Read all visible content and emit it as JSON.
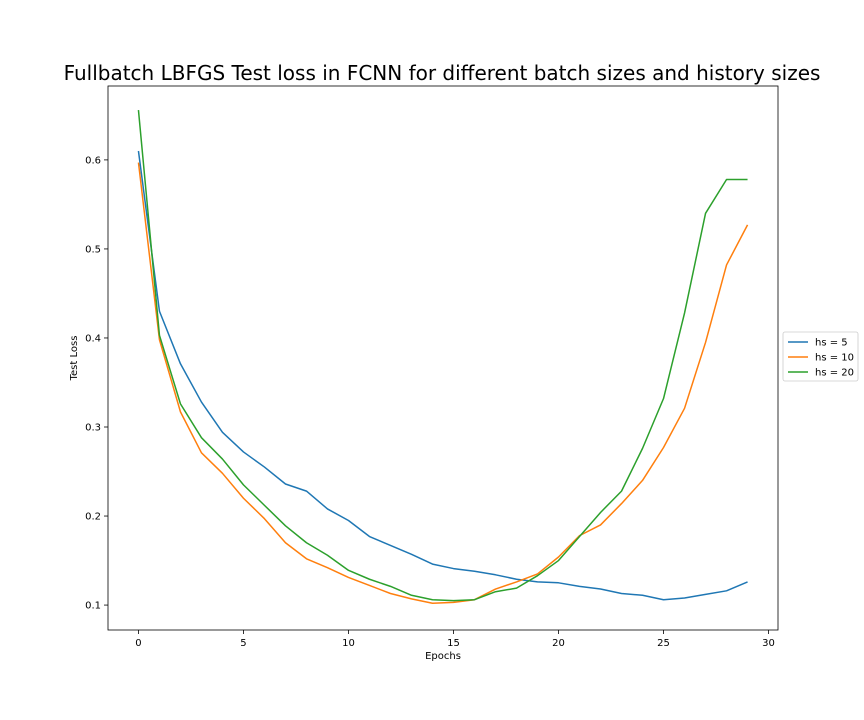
{
  "chart_data": {
    "type": "line",
    "title": "Fullbatch LBFGS Test loss in FCNN for different batch sizes and history sizes",
    "xlabel": "Epochs",
    "ylabel": "Test Loss",
    "xlim": [
      -1.45,
      30.45
    ],
    "ylim": [
      0.072,
      0.683
    ],
    "xticks": [
      0,
      5,
      10,
      15,
      20,
      25,
      30
    ],
    "yticks": [
      0.1,
      0.2,
      0.3,
      0.4,
      0.5,
      0.6
    ],
    "xtick_labels": [
      "0",
      "5",
      "10",
      "15",
      "20",
      "25",
      "30"
    ],
    "ytick_labels": [
      "0.1",
      "0.2",
      "0.3",
      "0.4",
      "0.5",
      "0.6"
    ],
    "grid": false,
    "legend_position": "center-right-outside",
    "x": [
      0,
      1,
      2,
      3,
      4,
      5,
      6,
      7,
      8,
      9,
      10,
      11,
      12,
      13,
      14,
      15,
      16,
      17,
      18,
      19,
      20,
      21,
      22,
      23,
      24,
      25,
      26,
      27,
      28,
      29
    ],
    "series": [
      {
        "name": "hs = 5",
        "color": "#1f77b4",
        "values": [
          0.61,
          0.43,
          0.371,
          0.328,
          0.294,
          0.272,
          0.255,
          0.236,
          0.228,
          0.208,
          0.195,
          0.177,
          0.167,
          0.157,
          0.146,
          0.141,
          0.138,
          0.134,
          0.129,
          0.126,
          0.125,
          0.121,
          0.118,
          0.113,
          0.111,
          0.106,
          0.108,
          0.112,
          0.116,
          0.126
        ]
      },
      {
        "name": "hs = 10",
        "color": "#ff7f0e",
        "values": [
          0.597,
          0.398,
          0.317,
          0.271,
          0.248,
          0.22,
          0.197,
          0.17,
          0.152,
          0.142,
          0.131,
          0.122,
          0.113,
          0.107,
          0.102,
          0.103,
          0.106,
          0.118,
          0.126,
          0.135,
          0.154,
          0.178,
          0.19,
          0.214,
          0.24,
          0.277,
          0.321,
          0.395,
          0.482,
          0.527
        ]
      },
      {
        "name": "hs = 20",
        "color": "#2ca02c",
        "values": [
          0.656,
          0.403,
          0.326,
          0.288,
          0.264,
          0.235,
          0.212,
          0.189,
          0.17,
          0.156,
          0.139,
          0.129,
          0.121,
          0.111,
          0.106,
          0.105,
          0.106,
          0.115,
          0.119,
          0.133,
          0.15,
          0.177,
          0.204,
          0.228,
          0.276,
          0.332,
          0.428,
          0.54,
          0.578,
          0.578
        ]
      }
    ]
  }
}
